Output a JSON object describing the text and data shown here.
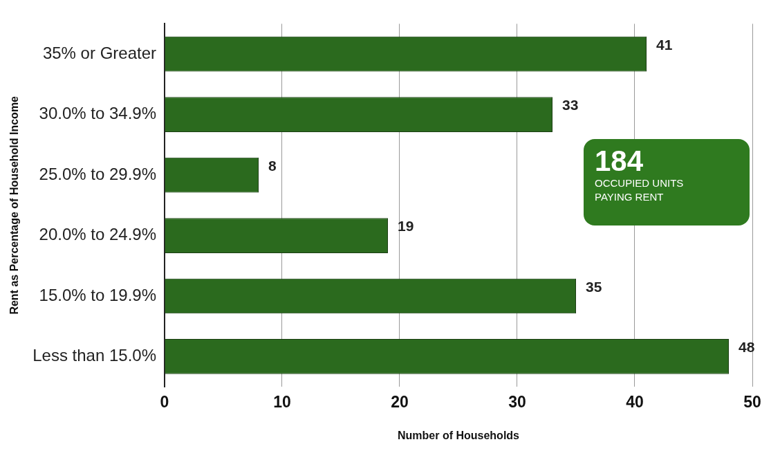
{
  "chart_data": {
    "type": "bar",
    "orientation": "horizontal",
    "xlabel": "Number of Households",
    "ylabel": "Rent as Percentage of Household Income",
    "categories": [
      "35% or Greater",
      "30.0% to 34.9%",
      "25.0% to 29.9%",
      "20.0% to 24.9%",
      "15.0% to 19.9%",
      "Less than 15.0%"
    ],
    "values": [
      41,
      33,
      8,
      19,
      35,
      48
    ],
    "color": "#2b6a1e",
    "xlim": [
      0,
      50
    ],
    "xticks": [
      0,
      10,
      20,
      30,
      40,
      50
    ],
    "grid": "x",
    "data_labels": true,
    "legend": false,
    "annotations": [
      "184",
      "OCCUPIED UNITS PAYING RENT"
    ]
  }
}
